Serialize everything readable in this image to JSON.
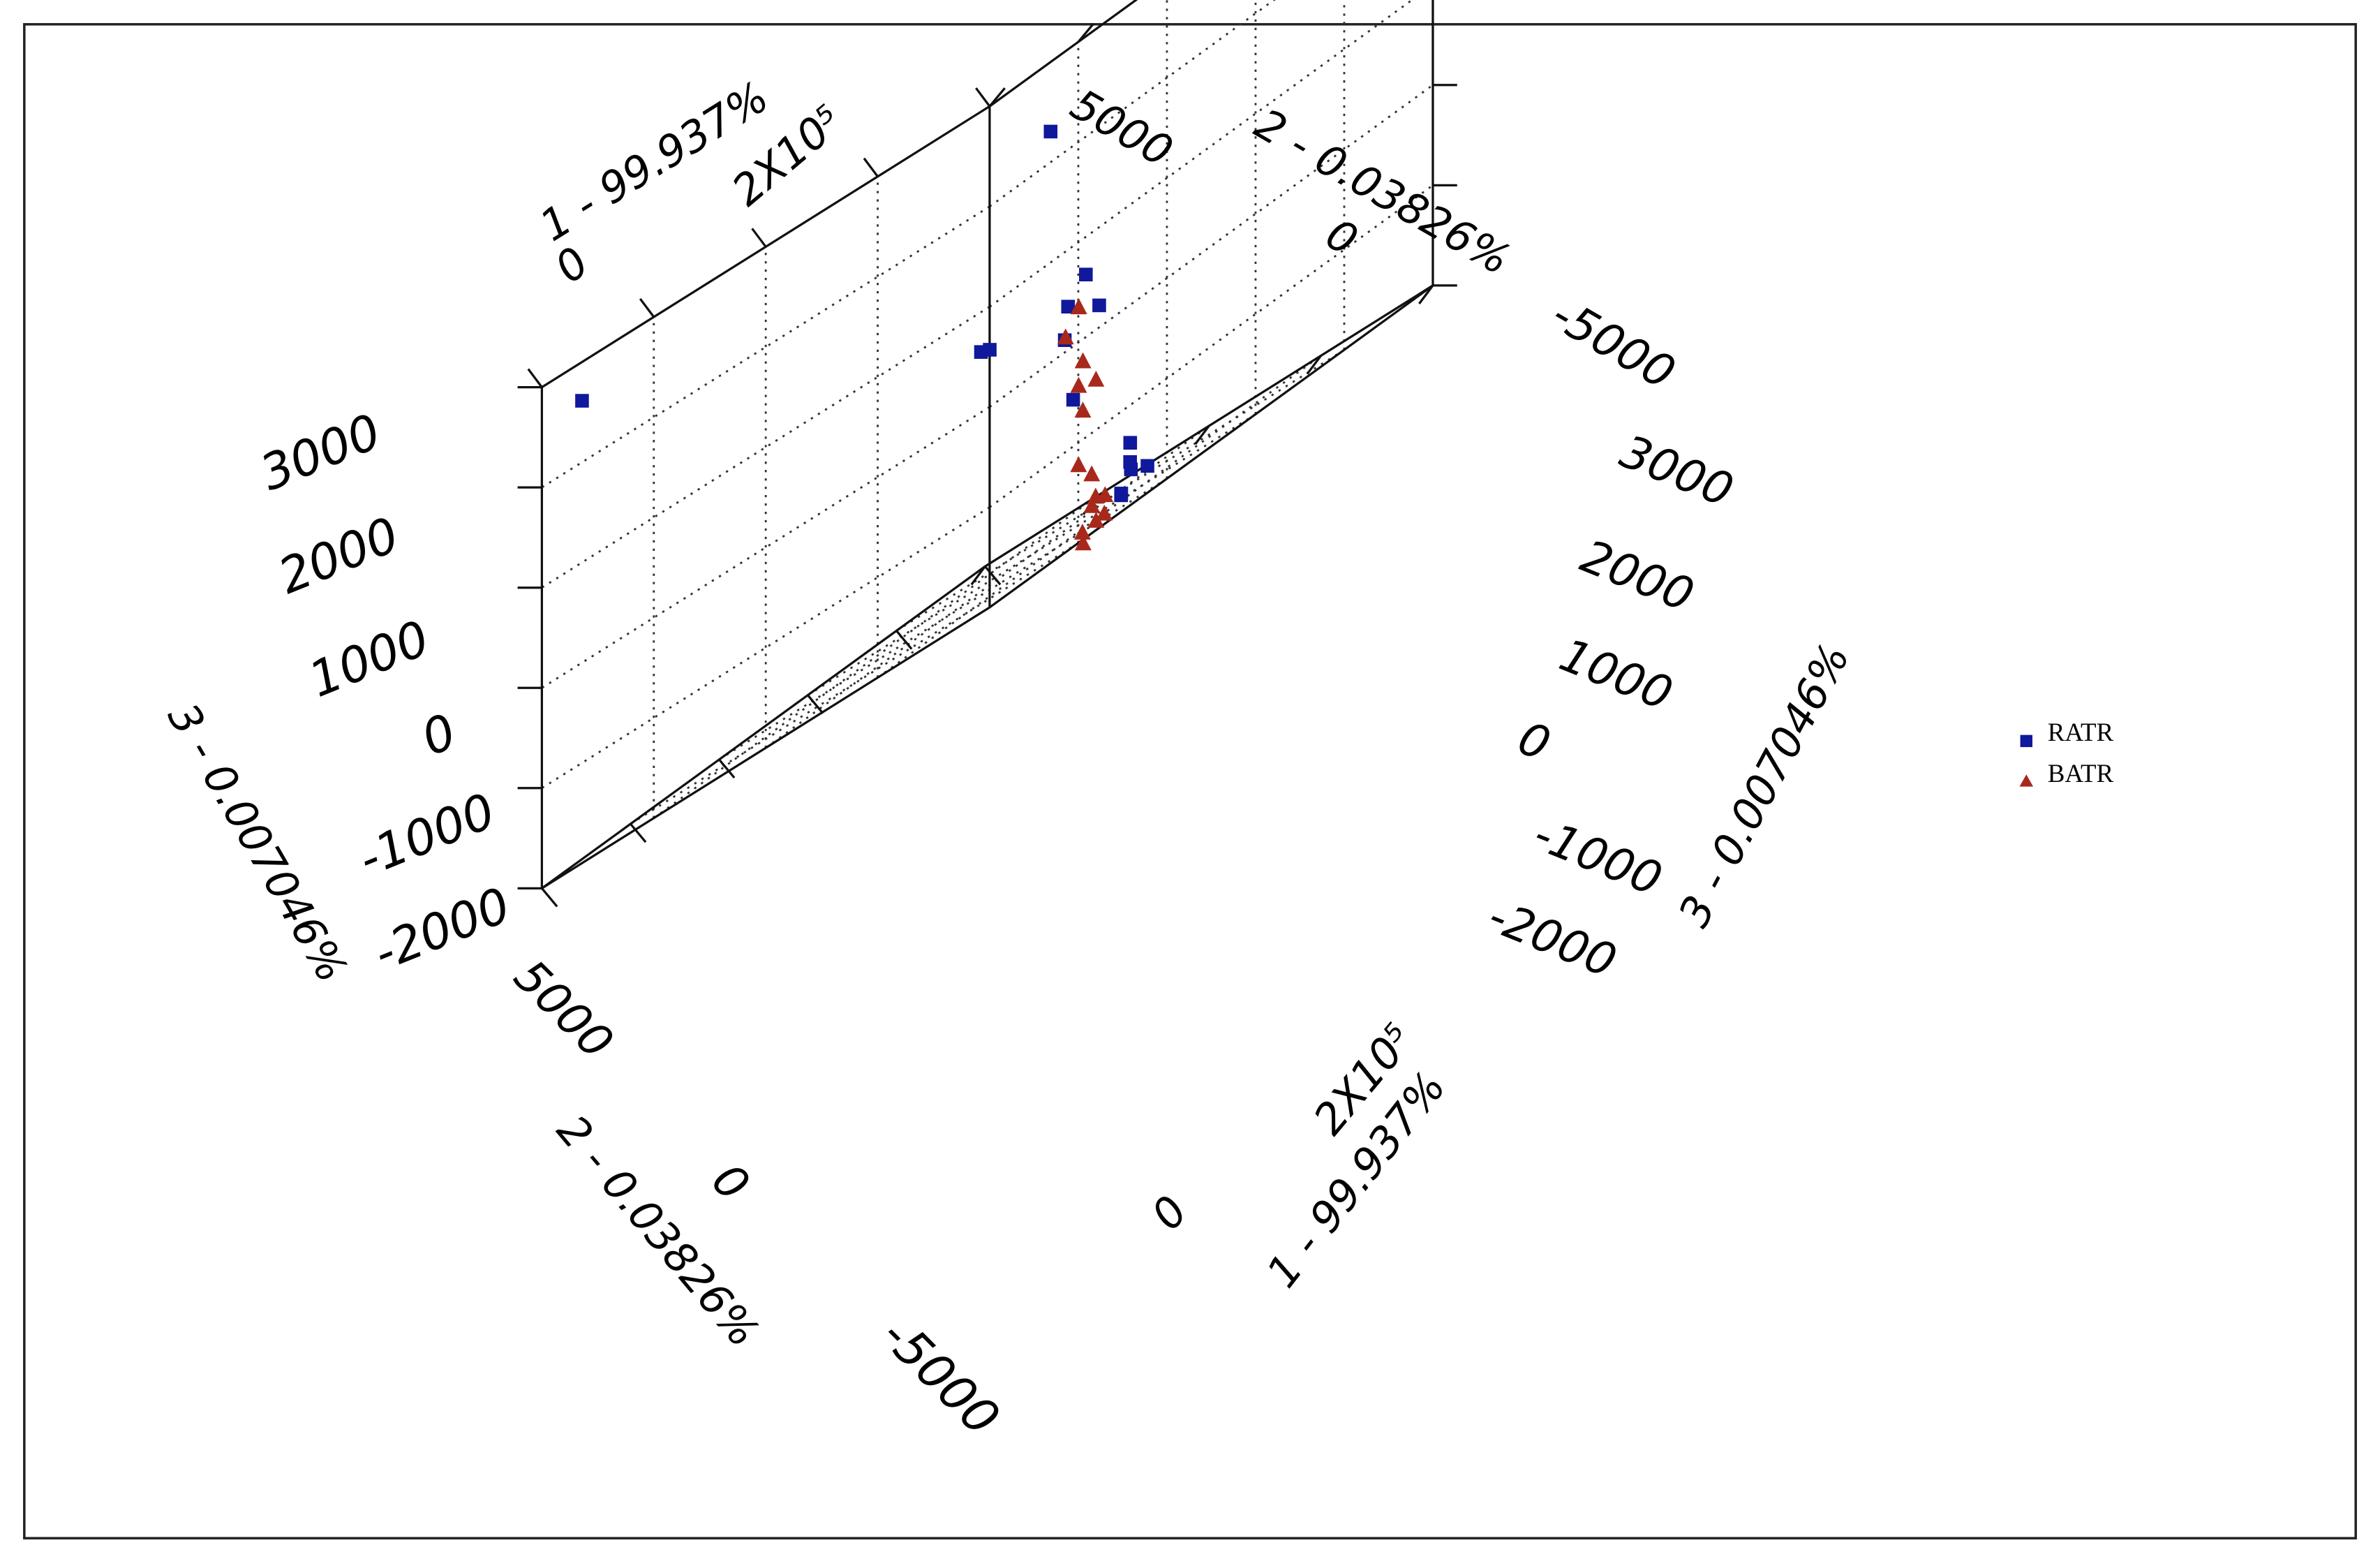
{
  "chart_data": {
    "type": "scatter",
    "projection": "3d",
    "axes": {
      "axis1": {
        "label": "1 - 99.937%",
        "ticks": [
          "0",
          "2X10⁵"
        ],
        "range": [
          0,
          250000
        ]
      },
      "axis2": {
        "label": "2 - 0.03826%",
        "ticks": [
          "5000",
          "0",
          "-5000"
        ],
        "range": [
          -5000,
          5000
        ]
      },
      "axis3": {
        "label": "3 - 0.007046%",
        "ticks": [
          "3000",
          "2000",
          "1000",
          "0",
          "-1000",
          "-2000"
        ],
        "range": [
          -2000,
          3000
        ]
      }
    },
    "grid": true,
    "legend_position": "right",
    "series": [
      {
        "name": "RATR",
        "marker": "square",
        "color": "#10189c",
        "points": [
          {
            "x1": 7500,
            "x2": -4400,
            "x3": 2600
          },
          {
            "x1": 95000,
            "x2": 2600,
            "x3": 2200
          },
          {
            "x1": 240000,
            "x2": -4500,
            "x3": 150
          },
          {
            "x1": 230000,
            "x2": -4300,
            "x3": 200
          },
          {
            "x1": 125000,
            "x2": 2200,
            "x3": 500
          },
          {
            "x1": 120000,
            "x2": 2000,
            "x3": 300
          },
          {
            "x1": 130000,
            "x2": 2300,
            "x3": 100
          },
          {
            "x1": 55000,
            "x2": 4500,
            "x3": 100
          },
          {
            "x1": 85000,
            "x2": 3500,
            "x3": -600
          },
          {
            "x1": 150000,
            "x2": 2200,
            "x3": -1500
          },
          {
            "x1": 155000,
            "x2": 2000,
            "x3": -1700
          },
          {
            "x1": 110000,
            "x2": 3800,
            "x3": -1700
          },
          {
            "x1": 112000,
            "x2": 3500,
            "x3": -1900
          },
          {
            "x1": 185000,
            "x2": 1200,
            "x3": -1900
          },
          {
            "x1": 150000,
            "x2": 2000,
            "x3": -1950
          }
        ]
      },
      {
        "name": "BATR",
        "marker": "triangle",
        "color": "#a8281c",
        "points": [
          {
            "x1": 20000,
            "x2": 6200,
            "x3": 400
          },
          {
            "x1": 10000,
            "x2": 6300,
            "x3": 200
          },
          {
            "x1": 30000,
            "x2": 5800,
            "x3": -400
          },
          {
            "x1": 40000,
            "x2": 5500,
            "x3": -200
          },
          {
            "x1": 45000,
            "x2": 5300,
            "x3": -700
          },
          {
            "x1": 60000,
            "x2": 5000,
            "x3": -500
          },
          {
            "x1": 35000,
            "x2": 5600,
            "x3": -1200
          },
          {
            "x1": 40000,
            "x2": 5700,
            "x3": -1700
          },
          {
            "x1": 50000,
            "x2": 5300,
            "x3": -1400
          },
          {
            "x1": 55000,
            "x2": 5400,
            "x3": -1700
          },
          {
            "x1": 30000,
            "x2": 5900,
            "x3": -2000
          },
          {
            "x1": 55000,
            "x2": 5200,
            "x3": -1900
          },
          {
            "x1": 65000,
            "x2": 4500,
            "x3": -1950
          },
          {
            "x1": 80000,
            "x2": 4200,
            "x3": -1700
          },
          {
            "x1": 95000,
            "x2": 3800,
            "x3": -1950
          }
        ]
      }
    ]
  }
}
